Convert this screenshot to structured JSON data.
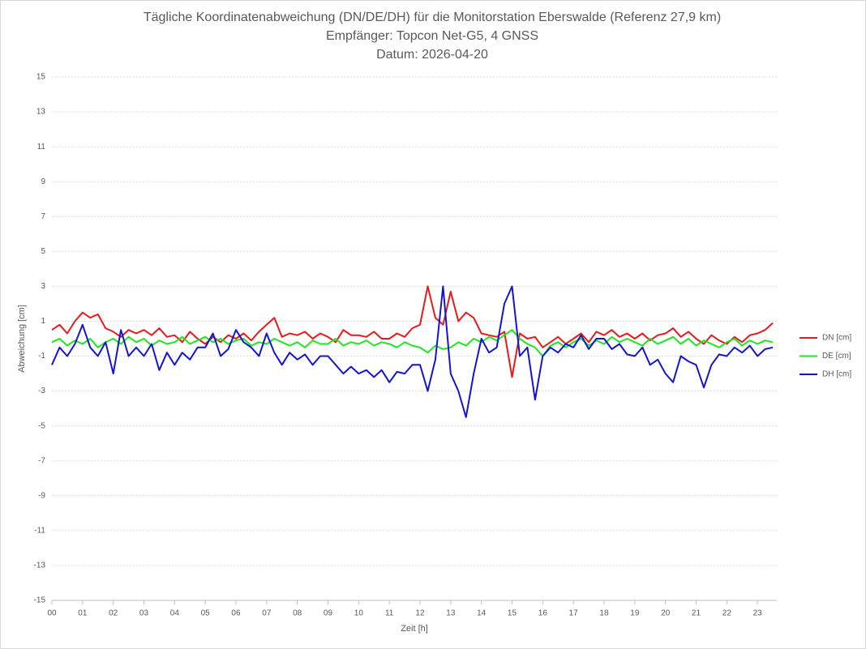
{
  "chart_data": {
    "type": "line",
    "title_lines": [
      "Tägliche Koordinatenabweichung (DN/DE/DH) für die Monitorstation Eberswalde (Referenz 27,9 km)",
      "Empfänger: Topcon Net-G5, 4 GNSS",
      "Datum: 2026-04-20"
    ],
    "xlabel": "Zeit [h]",
    "ylabel": "Abweichung [cm]",
    "xlim": [
      0,
      23.63
    ],
    "ylim": [
      -15,
      15
    ],
    "xticks": [
      {
        "value": 0,
        "label": "00"
      },
      {
        "value": 1,
        "label": "01"
      },
      {
        "value": 2,
        "label": "02"
      },
      {
        "value": 3,
        "label": "03"
      },
      {
        "value": 4,
        "label": "04"
      },
      {
        "value": 5,
        "label": "05"
      },
      {
        "value": 6,
        "label": "06"
      },
      {
        "value": 7,
        "label": "07"
      },
      {
        "value": 8,
        "label": "08"
      },
      {
        "value": 9,
        "label": "09"
      },
      10,
      11,
      12,
      13,
      14,
      15,
      16,
      17,
      18,
      19,
      20,
      21,
      22,
      23
    ],
    "yticks": [
      -15,
      -13,
      -11,
      -9,
      -7,
      -5,
      -3,
      -1,
      1,
      3,
      5,
      7,
      9,
      11,
      13,
      15
    ],
    "grid": true,
    "legend": "right",
    "x": [
      0,
      0.25,
      0.5,
      0.75,
      1,
      1.25,
      1.5,
      1.75,
      2,
      2.25,
      2.5,
      2.75,
      3,
      3.25,
      3.5,
      3.75,
      4,
      4.25,
      4.5,
      4.75,
      5,
      5.25,
      5.5,
      5.75,
      6,
      6.25,
      6.5,
      6.75,
      7,
      7.25,
      7.5,
      7.75,
      8,
      8.25,
      8.5,
      8.75,
      9,
      9.25,
      9.5,
      9.75,
      10,
      10.25,
      10.5,
      10.75,
      11,
      11.25,
      11.5,
      11.75,
      12,
      12.25,
      12.5,
      12.75,
      13,
      13.25,
      13.5,
      13.75,
      14,
      14.25,
      14.5,
      14.75,
      15,
      15.25,
      15.5,
      15.75,
      16,
      16.25,
      16.5,
      16.75,
      17,
      17.25,
      17.5,
      17.75,
      18,
      18.25,
      18.5,
      18.75,
      19,
      19.25,
      19.5,
      19.75,
      20,
      20.25,
      20.5,
      20.75,
      21,
      21.25,
      21.5,
      21.75,
      22,
      22.25,
      22.5,
      22.75,
      23,
      23.25,
      23.5
    ],
    "series": [
      {
        "name": "DN [cm]",
        "color": "#e8191b",
        "values": [
          0.5,
          0.8,
          0.3,
          1.0,
          1.5,
          1.2,
          1.4,
          0.6,
          0.4,
          0.1,
          0.5,
          0.3,
          0.5,
          0.2,
          0.6,
          0.1,
          0.2,
          -0.2,
          0.4,
          0,
          -0.3,
          0.1,
          -0.2,
          0.2,
          0,
          0.3,
          -0.1,
          0.4,
          0.8,
          1.2,
          0.1,
          0.3,
          0.2,
          0.4,
          0,
          0.3,
          0.1,
          -0.2,
          0.5,
          0.2,
          0.2,
          0.1,
          0.4,
          0,
          0,
          0.3,
          0.1,
          0.6,
          0.8,
          3.0,
          1.2,
          0.8,
          2.7,
          1.0,
          1.5,
          1.2,
          0.3,
          0.2,
          0.1,
          0.4,
          -2.2,
          0.3,
          0,
          0.1,
          -0.5,
          -0.2,
          0.1,
          -0.3,
          0,
          0.3,
          -0.2,
          0.4,
          0.2,
          0.5,
          0.1,
          0.3,
          0,
          0.3,
          -0.1,
          0.2,
          0.3,
          0.6,
          0.1,
          0.4,
          0,
          -0.3,
          0.2,
          -0.1,
          -0.3,
          0.1,
          -0.2,
          0.2,
          0.3,
          0.5,
          0.9
        ]
      },
      {
        "name": "DE [cm]",
        "color": "#1ee61e",
        "values": [
          -0.2,
          0,
          -0.4,
          -0.1,
          -0.3,
          0,
          -0.5,
          -0.2,
          0,
          -0.3,
          0.1,
          -0.2,
          0,
          -0.4,
          -0.1,
          -0.3,
          -0.2,
          0.1,
          -0.3,
          -0.1,
          0.1,
          -0.2,
          0,
          -0.3,
          -0.1,
          0,
          -0.4,
          -0.2,
          -0.3,
          0,
          -0.2,
          -0.4,
          -0.2,
          -0.5,
          -0.1,
          -0.3,
          -0.3,
          0,
          -0.4,
          -0.2,
          -0.3,
          -0.1,
          -0.4,
          -0.2,
          -0.3,
          -0.5,
          -0.2,
          -0.4,
          -0.5,
          -0.8,
          -0.4,
          -0.6,
          -0.5,
          -0.2,
          -0.4,
          0,
          -0.2,
          0.1,
          -0.1,
          0.2,
          0.5,
          0,
          -0.3,
          -0.5,
          -1.0,
          -0.4,
          -0.2,
          -0.5,
          -0.2,
          0,
          -0.4,
          -0.1,
          -0.3,
          0.1,
          -0.2,
          0,
          -0.2,
          -0.4,
          0,
          -0.3,
          -0.1,
          0.1,
          -0.3,
          0,
          -0.4,
          -0.1,
          -0.3,
          -0.5,
          -0.2,
          0,
          -0.4,
          -0.1,
          -0.3,
          -0.1,
          -0.2
        ]
      },
      {
        "name": "DH [cm]",
        "color": "#1414d2",
        "values": [
          -1.5,
          -0.5,
          -1.0,
          -0.3,
          0.8,
          -0.5,
          -1.0,
          -0.2,
          -2.0,
          0.5,
          -1.0,
          -0.5,
          -1.0,
          -0.3,
          -1.8,
          -0.8,
          -1.5,
          -0.8,
          -1.2,
          -0.5,
          -0.5,
          0.3,
          -1.0,
          -0.6,
          0.5,
          -0.2,
          -0.5,
          -1.0,
          0.3,
          -0.8,
          -1.5,
          -0.8,
          -1.2,
          -0.9,
          -1.5,
          -1.0,
          -1.0,
          -1.5,
          -2.0,
          -1.6,
          -2.0,
          -1.8,
          -2.2,
          -1.8,
          -2.5,
          -1.9,
          -2.0,
          -1.5,
          -1.5,
          -3.0,
          -1.2,
          3.0,
          -2.0,
          -3.0,
          -4.5,
          -2.0,
          0,
          -0.8,
          -0.5,
          2.0,
          3.0,
          -1.0,
          -0.5,
          -3.5,
          -1.0,
          -0.5,
          -0.8,
          -0.3,
          -0.5,
          0.2,
          -0.6,
          0,
          0,
          -0.6,
          -0.3,
          -0.9,
          -1.0,
          -0.5,
          -1.5,
          -1.2,
          -2.0,
          -2.5,
          -1.0,
          -1.3,
          -1.5,
          -2.8,
          -1.5,
          -0.9,
          -1.0,
          -0.5,
          -0.8,
          -0.4,
          -1.0,
          -0.6,
          -0.5
        ]
      }
    ]
  }
}
